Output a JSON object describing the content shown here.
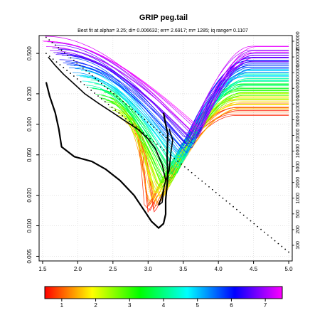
{
  "chart_data": {
    "type": "line",
    "title": "GRIP peg.tail",
    "info_line": "Best fit at alpha= 3.25; di= 0.006632; err= 2.6917; m= 1285; iq range= 0.1107",
    "x_ticks": [
      1.5,
      2.0,
      2.5,
      3.0,
      3.5,
      4.0,
      4.5,
      5.0
    ],
    "x_tick_labels": [
      "1.5",
      "2.0",
      "2.5",
      "3.0",
      "3.5",
      "4.0",
      "4.5",
      "5.0"
    ],
    "xlim": [
      1.45,
      5.05
    ],
    "y_scale": "log",
    "ylim": [
      0.0045,
      0.75
    ],
    "y_ticks": [
      0.005,
      0.01,
      0.02,
      0.05,
      0.1,
      0.2,
      0.5
    ],
    "y_tick_labels": [
      "0.005",
      "0.010",
      "0.020",
      "0.050",
      "0.100",
      "0.200",
      "0.500"
    ],
    "right_axis_labels": [
      "100",
      "200",
      "500",
      "1000",
      "2000",
      "5000",
      "10000",
      "20000",
      "50000",
      "100000",
      "200000",
      "500000",
      "1000000",
      "2000000"
    ],
    "colorbar": {
      "ticks": [
        1,
        2,
        3,
        4,
        5,
        6,
        7
      ],
      "tick_labels": [
        "1",
        "2",
        "3",
        "4",
        "5",
        "6",
        "7"
      ],
      "range": [
        0.5,
        7.5
      ],
      "colors": [
        "#ff0000",
        "#ffff00",
        "#00ff00",
        "#00ffff",
        "#0000ff",
        "#ff00ff"
      ]
    },
    "curve_family": {
      "count": 80,
      "start_x_range": [
        1.5,
        3.0
      ],
      "minimum_x_range": [
        3.0,
        3.7
      ],
      "minimum_y_range": [
        0.013,
        0.09
      ],
      "end_y_range": [
        0.13,
        0.55
      ]
    },
    "best_fit_path": [
      [
        1.55,
        0.26
      ],
      [
        1.6,
        0.19
      ],
      [
        1.68,
        0.13
      ],
      [
        1.73,
        0.09
      ],
      [
        1.77,
        0.06
      ],
      [
        1.95,
        0.048
      ],
      [
        2.2,
        0.043
      ],
      [
        2.4,
        0.036
      ],
      [
        2.6,
        0.028
      ],
      [
        2.8,
        0.02
      ],
      [
        2.95,
        0.014
      ],
      [
        3.05,
        0.011
      ],
      [
        3.15,
        0.0095
      ],
      [
        3.22,
        0.0105
      ],
      [
        3.25,
        0.013
      ],
      [
        3.25,
        0.018
      ],
      [
        3.28,
        0.03
      ],
      [
        3.27,
        0.05
      ],
      [
        3.28,
        0.08
      ],
      [
        3.25,
        0.1
      ],
      [
        3.22,
        0.13
      ]
    ],
    "secondary_path": [
      [
        1.58,
        0.46
      ],
      [
        1.68,
        0.38
      ],
      [
        1.8,
        0.31
      ],
      [
        1.95,
        0.25
      ],
      [
        2.1,
        0.2
      ],
      [
        2.3,
        0.16
      ],
      [
        2.5,
        0.13
      ],
      [
        2.7,
        0.105
      ],
      [
        2.85,
        0.09
      ],
      [
        3.0,
        0.072
      ],
      [
        3.1,
        0.058
      ],
      [
        3.2,
        0.04
      ],
      [
        3.25,
        0.028
      ],
      [
        3.2,
        0.02
      ],
      [
        3.15,
        0.016
      ],
      [
        3.2,
        0.017
      ],
      [
        3.23,
        0.025
      ],
      [
        3.3,
        0.035
      ],
      [
        3.32,
        0.05
      ],
      [
        3.35,
        0.07
      ],
      [
        3.3,
        0.09
      ]
    ],
    "dotted_line": {
      "x": [
        1.55,
        5.0
      ],
      "y": [
        0.5,
        0.0055
      ]
    },
    "dotted_line_upper": {
      "x": [
        1.55,
        3.3
      ],
      "y": [
        0.72,
        0.07
      ]
    }
  }
}
